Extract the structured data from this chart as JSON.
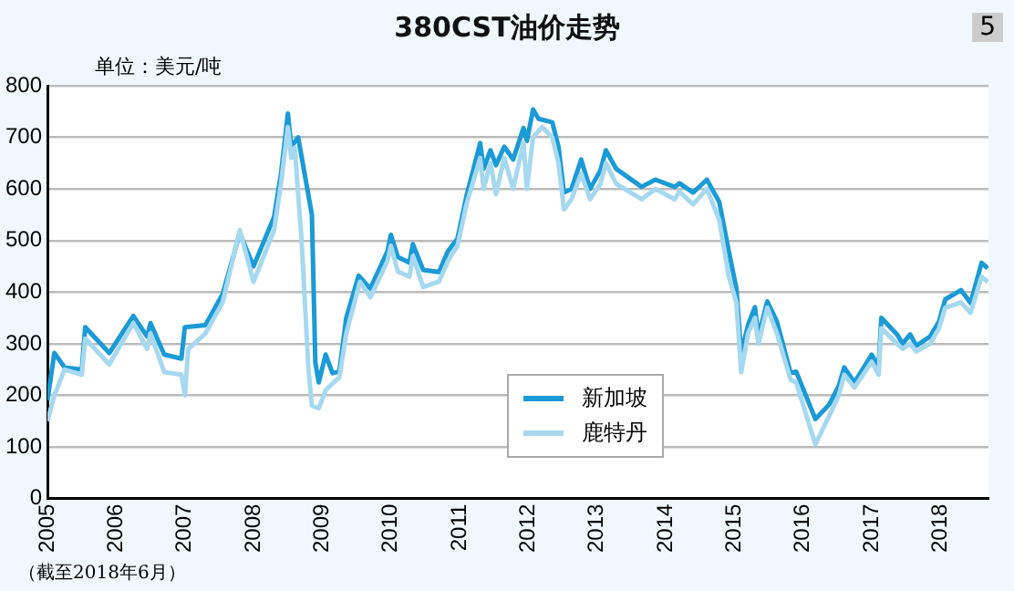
{
  "chart_data": {
    "type": "line",
    "title": "380CST油价走势",
    "ylabel": "单位：美元/吨",
    "annotations": [
      "5",
      "（截至2018年6月）"
    ],
    "xlim": [
      2005,
      2018.7
    ],
    "xticks": [
      2005,
      2006,
      2007,
      2008,
      2009,
      2010,
      2011,
      2012,
      2013,
      2014,
      2015,
      2016,
      2017,
      2018
    ],
    "ylim": [
      0,
      800
    ],
    "yticks": [
      0,
      100,
      200,
      300,
      400,
      500,
      600,
      700,
      800
    ],
    "grid": "y",
    "legend": "bottom",
    "marker": "none",
    "line_style": "solid",
    "series": [
      {
        "name": "新加坡",
        "color": "#1a9ad6",
        "x": [
          2005.0,
          2005.1,
          2005.25,
          2005.5,
          2005.55,
          2005.9,
          2006.25,
          2006.45,
          2006.5,
          2006.7,
          2006.95,
          2007.0,
          2007.3,
          2007.55,
          2007.8,
          2008.0,
          2008.3,
          2008.4,
          2008.5,
          2008.55,
          2008.65,
          2008.85,
          2008.9,
          2008.95,
          2009.05,
          2009.15,
          2009.25,
          2009.35,
          2009.53,
          2009.7,
          2009.95,
          2010.0,
          2010.1,
          2010.27,
          2010.32,
          2010.47,
          2010.7,
          2010.83,
          2010.97,
          2011.1,
          2011.3,
          2011.35,
          2011.45,
          2011.53,
          2011.65,
          2011.78,
          2011.93,
          2011.98,
          2012.07,
          2012.15,
          2012.35,
          2012.44,
          2012.52,
          2012.63,
          2012.77,
          2012.9,
          2013.05,
          2013.13,
          2013.28,
          2013.65,
          2013.85,
          2014.13,
          2014.2,
          2014.4,
          2014.6,
          2014.78,
          2014.92,
          2015.03,
          2015.1,
          2015.2,
          2015.3,
          2015.35,
          2015.48,
          2015.62,
          2015.82,
          2015.9,
          2016.18,
          2016.38,
          2016.52,
          2016.6,
          2016.75,
          2017.0,
          2017.1,
          2017.14,
          2017.37,
          2017.45,
          2017.56,
          2017.65,
          2017.85,
          2017.98,
          2018.07,
          2018.3,
          2018.44,
          2018.6,
          2018.69
        ],
        "values": [
          190,
          282,
          254,
          250,
          332,
          282,
          354,
          314,
          340,
          279,
          271,
          332,
          336,
          396,
          514,
          450,
          546,
          629,
          746,
          682,
          700,
          550,
          264,
          225,
          279,
          243,
          246,
          350,
          432,
          407,
          479,
          511,
          468,
          457,
          493,
          443,
          439,
          479,
          504,
          586,
          689,
          639,
          675,
          646,
          682,
          657,
          718,
          693,
          754,
          736,
          729,
          682,
          593,
          600,
          657,
          600,
          636,
          675,
          639,
          604,
          618,
          604,
          611,
          593,
          618,
          575,
          479,
          407,
          282,
          336,
          371,
          314,
          382,
          343,
          243,
          246,
          154,
          182,
          218,
          254,
          225,
          279,
          254,
          350,
          318,
          300,
          318,
          296,
          314,
          343,
          386,
          404,
          379,
          457,
          446
        ]
      },
      {
        "name": "鹿特丹",
        "color": "#a6d8f0",
        "x": [
          2005.0,
          2005.1,
          2005.25,
          2005.5,
          2005.55,
          2005.9,
          2006.25,
          2006.45,
          2006.5,
          2006.7,
          2006.95,
          2007.0,
          2007.05,
          2007.3,
          2007.55,
          2007.8,
          2007.9,
          2008.0,
          2008.3,
          2008.4,
          2008.5,
          2008.55,
          2008.6,
          2008.7,
          2008.8,
          2008.85,
          2008.95,
          2009.05,
          2009.25,
          2009.35,
          2009.55,
          2009.7,
          2009.95,
          2010.0,
          2010.1,
          2010.27,
          2010.32,
          2010.47,
          2010.7,
          2010.83,
          2010.97,
          2011.1,
          2011.3,
          2011.35,
          2011.45,
          2011.53,
          2011.65,
          2011.78,
          2011.93,
          2011.98,
          2012.07,
          2012.2,
          2012.35,
          2012.44,
          2012.52,
          2012.63,
          2012.77,
          2012.9,
          2013.05,
          2013.13,
          2013.28,
          2013.65,
          2013.85,
          2014.13,
          2014.2,
          2014.4,
          2014.6,
          2014.78,
          2014.92,
          2015.03,
          2015.1,
          2015.2,
          2015.3,
          2015.35,
          2015.48,
          2015.62,
          2015.82,
          2015.9,
          2016.18,
          2016.38,
          2016.52,
          2016.6,
          2016.75,
          2017.0,
          2017.1,
          2017.14,
          2017.37,
          2017.45,
          2017.56,
          2017.65,
          2017.85,
          2017.98,
          2018.07,
          2018.3,
          2018.44,
          2018.6,
          2018.69
        ],
        "values": [
          150,
          200,
          250,
          240,
          310,
          260,
          340,
          290,
          320,
          245,
          240,
          200,
          290,
          320,
          380,
          520,
          470,
          420,
          520,
          610,
          720,
          660,
          680,
          500,
          250,
          180,
          175,
          210,
          235,
          320,
          420,
          390,
          460,
          490,
          440,
          430,
          470,
          410,
          420,
          460,
          490,
          570,
          660,
          600,
          650,
          590,
          660,
          600,
          690,
          600,
          700,
          720,
          700,
          650,
          560,
          580,
          630,
          580,
          610,
          650,
          610,
          580,
          600,
          580,
          595,
          570,
          600,
          540,
          430,
          380,
          245,
          320,
          350,
          300,
          370,
          320,
          230,
          225,
          105,
          160,
          200,
          240,
          215,
          265,
          240,
          330,
          300,
          290,
          300,
          285,
          300,
          330,
          370,
          380,
          360,
          430,
          420
        ]
      }
    ]
  }
}
